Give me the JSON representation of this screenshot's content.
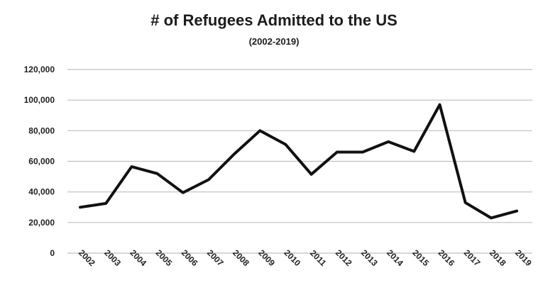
{
  "chart_data": {
    "type": "line",
    "title": "# of Refugees Admitted to the US",
    "subtitle": "(2002-2019)",
    "xlabel": "",
    "ylabel": "",
    "categories": [
      "2002",
      "2003",
      "2004",
      "2005",
      "2006",
      "2007",
      "2008",
      "2009",
      "2010",
      "2011",
      "2012",
      "2013",
      "2014",
      "2015",
      "2016",
      "2017",
      "2018",
      "2019"
    ],
    "series": [
      {
        "values": [
          30000,
          32500,
          56500,
          52000,
          39500,
          48000,
          64800,
          80000,
          71000,
          51500,
          66000,
          66000,
          72800,
          66500,
          97000,
          33000,
          23000,
          27500
        ]
      }
    ],
    "ylim": [
      0,
      120000
    ],
    "yticks": [
      0,
      20000,
      40000,
      60000,
      80000,
      100000,
      120000
    ],
    "ytick_labels": [
      "0",
      "20,000",
      "40,000",
      "60,000",
      "80,000",
      "100,000",
      "120,000"
    ],
    "grid": true,
    "legend": "none",
    "line_color": "#111111",
    "grid_color": "#bfbfbf"
  }
}
